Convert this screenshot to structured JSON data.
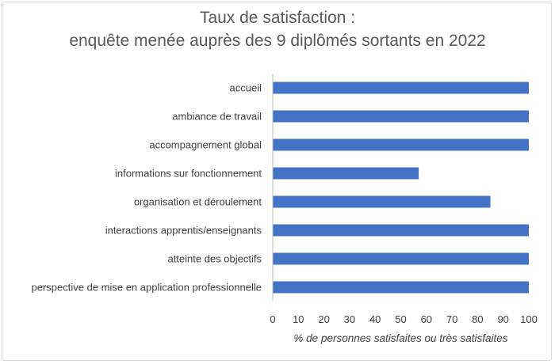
{
  "chart_data": {
    "type": "bar",
    "orientation": "horizontal",
    "title": [
      "Taux de satisfaction :",
      "enquête menée auprès des 9 diplômés sortants en 2022"
    ],
    "categories": [
      "accueil",
      "ambiance de travail",
      "accompagnement global",
      "informations sur fonctionnement",
      "organisation et déroulement",
      "interactions apprentis/enseignants",
      "atteinte des objectifs",
      "perspective de mise en application professionnelle"
    ],
    "values": [
      100,
      100,
      100,
      57,
      85,
      100,
      100,
      100
    ],
    "xlabel": "% de personnes satisfaites ou très satisfaites",
    "ylabel": "",
    "xlim": [
      0,
      100
    ],
    "xticks": [
      0,
      10,
      20,
      30,
      40,
      50,
      60,
      70,
      80,
      90,
      100
    ],
    "grid": false,
    "legend": "none",
    "bar_color": "#4472c4"
  }
}
